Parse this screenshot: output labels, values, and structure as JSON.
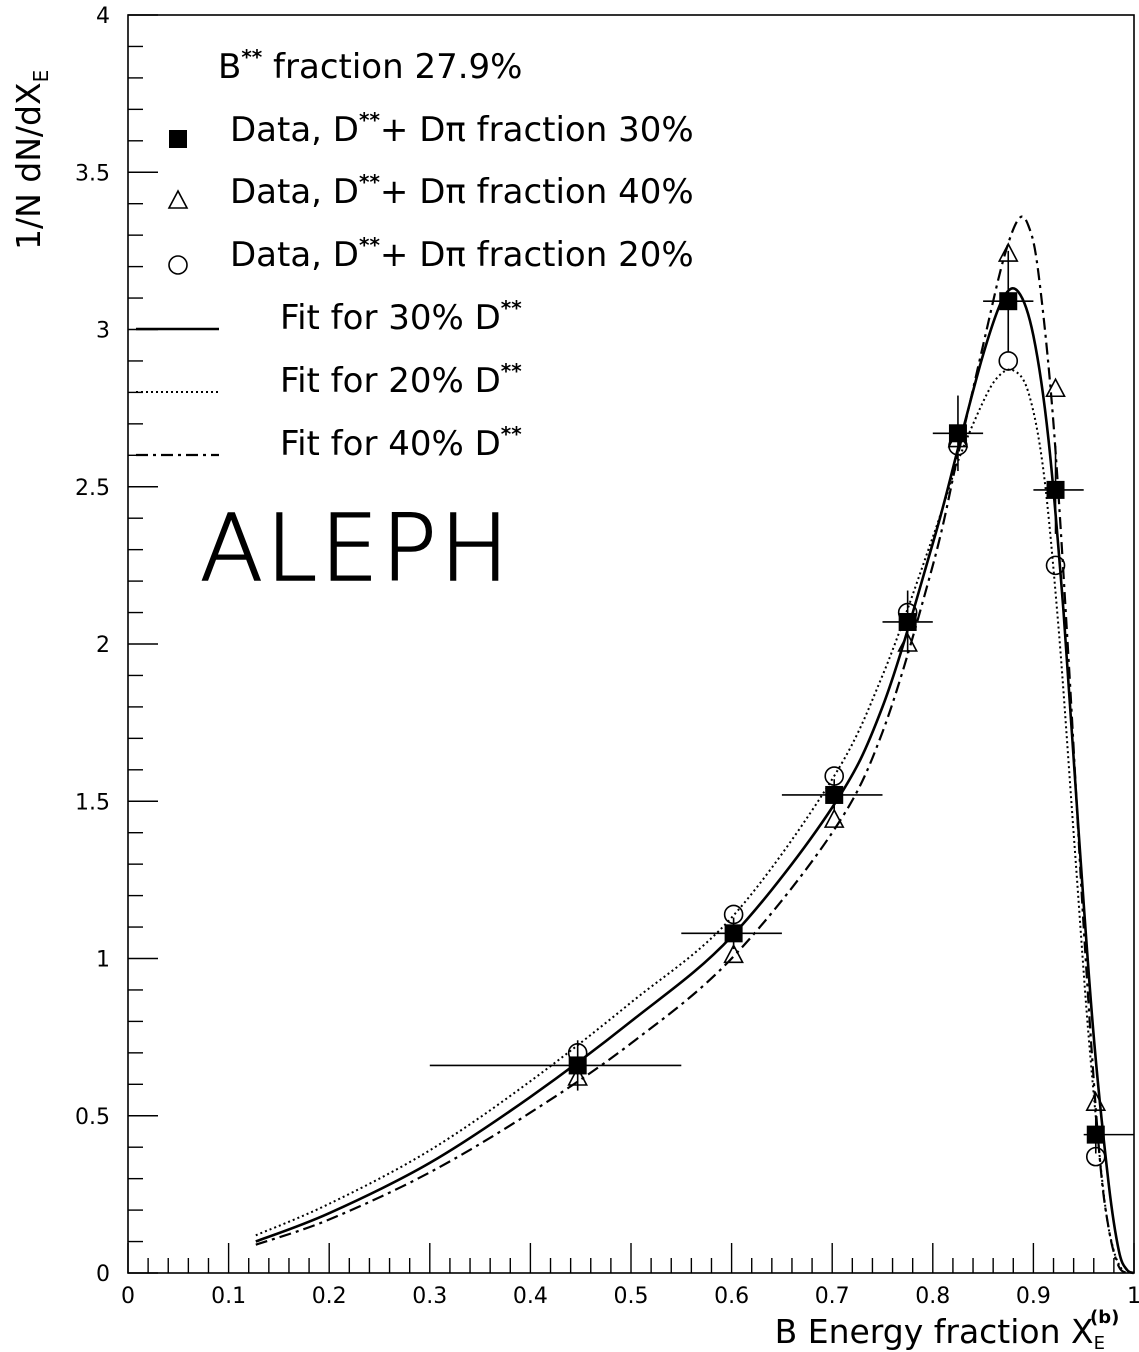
{
  "chart_data": {
    "type": "scatter",
    "title": "",
    "annotation": "ALEPH",
    "xlabel": "B Energy fraction X",
    "xlabel_sub": "E",
    "xlabel_sup": "(b)",
    "ylabel": "1/N dN/dX",
    "ylabel_sub": "E",
    "xlim": [
      0,
      1
    ],
    "ylim": [
      0,
      4
    ],
    "x_ticks": [
      0,
      0.1,
      0.2,
      0.3,
      0.4,
      0.5,
      0.6,
      0.7,
      0.8,
      0.9,
      1
    ],
    "x_tick_labels": [
      "0",
      "0.1",
      "0.2",
      "0.3",
      "0.4",
      "0.5",
      "0.6",
      "0.7",
      "0.8",
      "0.9",
      "1"
    ],
    "y_ticks": [
      0,
      0.5,
      1,
      1.5,
      2,
      2.5,
      3,
      3.5,
      4
    ],
    "y_tick_labels": [
      "0",
      "0.5",
      "1",
      "1.5",
      "2",
      "2.5",
      "3",
      "3.5",
      "4"
    ],
    "grid": false,
    "legend_position": "top-left",
    "header_text": {
      "prefix": "B",
      "sup": "**",
      "suffix": " fraction 27.9%"
    },
    "series": [
      {
        "name": "Data, D**+ Dπ fraction 30%",
        "label_prefix": "Data, D",
        "label_sup": "**",
        "label_suffix": "+ Dπ fraction 30%",
        "marker": "filled-square",
        "points": [
          {
            "x": 0.447,
            "y": 0.66,
            "xerr": [
              0.3,
              0.55
            ],
            "yerr": 0.08
          },
          {
            "x": 0.602,
            "y": 1.08,
            "xerr": [
              0.55,
              0.65
            ],
            "yerr": 0.05
          },
          {
            "x": 0.702,
            "y": 1.52,
            "xerr": [
              0.65,
              0.75
            ],
            "yerr": 0.05
          },
          {
            "x": 0.775,
            "y": 2.07,
            "xerr": [
              0.75,
              0.8
            ],
            "yerr": 0.1
          },
          {
            "x": 0.825,
            "y": 2.67,
            "xerr": [
              0.8,
              0.85
            ],
            "yerr": 0.12
          },
          {
            "x": 0.875,
            "y": 3.09,
            "xerr": [
              0.85,
              0.9
            ],
            "yerr": 0.16
          },
          {
            "x": 0.922,
            "y": 2.49,
            "xerr": [
              0.9,
              0.95
            ],
            "yerr": 0.14
          },
          {
            "x": 0.962,
            "y": 0.44,
            "xerr": [
              0.95,
              1.0
            ],
            "yerr": 0.06
          }
        ]
      },
      {
        "name": "Data, D**+ Dπ fraction 40%",
        "label_prefix": "Data, D",
        "label_sup": "**",
        "label_suffix": "+ Dπ fraction 40%",
        "marker": "open-triangle",
        "points": [
          {
            "x": 0.447,
            "y": 0.62
          },
          {
            "x": 0.602,
            "y": 1.01
          },
          {
            "x": 0.702,
            "y": 1.44
          },
          {
            "x": 0.775,
            "y": 2.0
          },
          {
            "x": 0.825,
            "y": 2.65
          },
          {
            "x": 0.875,
            "y": 3.24
          },
          {
            "x": 0.922,
            "y": 2.81
          },
          {
            "x": 0.962,
            "y": 0.54
          }
        ]
      },
      {
        "name": "Data, D**+ Dπ fraction 20%",
        "label_prefix": "Data, D",
        "label_sup": "**",
        "label_suffix": "+ Dπ fraction 20%",
        "marker": "open-circle",
        "points": [
          {
            "x": 0.447,
            "y": 0.7
          },
          {
            "x": 0.602,
            "y": 1.14
          },
          {
            "x": 0.702,
            "y": 1.58
          },
          {
            "x": 0.775,
            "y": 2.1
          },
          {
            "x": 0.825,
            "y": 2.63
          },
          {
            "x": 0.875,
            "y": 2.9
          },
          {
            "x": 0.922,
            "y": 2.25
          },
          {
            "x": 0.962,
            "y": 0.37
          }
        ]
      }
    ],
    "fits": [
      {
        "name": "Fit for 30% D**",
        "label_prefix": "Fit for 30% D",
        "label_sup": "**",
        "style": "solid",
        "x": [
          0.127,
          0.2,
          0.3,
          0.4,
          0.5,
          0.6,
          0.7,
          0.75,
          0.8,
          0.825,
          0.85,
          0.87,
          0.885,
          0.9,
          0.915,
          0.93,
          0.945,
          0.96,
          0.975,
          0.985,
          0.993,
          1.0
        ],
        "y": [
          0.1,
          0.19,
          0.35,
          0.56,
          0.8,
          1.07,
          1.48,
          1.8,
          2.32,
          2.62,
          2.92,
          3.1,
          3.12,
          2.98,
          2.65,
          2.1,
          1.4,
          0.75,
          0.28,
          0.07,
          0.01,
          0
        ]
      },
      {
        "name": "Fit for 20% D**",
        "label_prefix": "Fit for 20% D",
        "label_sup": "**",
        "style": "dotted",
        "x": [
          0.127,
          0.2,
          0.3,
          0.4,
          0.5,
          0.6,
          0.7,
          0.75,
          0.8,
          0.825,
          0.85,
          0.865,
          0.88,
          0.895,
          0.91,
          0.925,
          0.94,
          0.955,
          0.97,
          0.98,
          0.99
        ],
        "y": [
          0.12,
          0.22,
          0.39,
          0.61,
          0.86,
          1.13,
          1.57,
          1.9,
          2.34,
          2.58,
          2.77,
          2.85,
          2.87,
          2.8,
          2.55,
          2.05,
          1.4,
          0.75,
          0.25,
          0.07,
          0
        ]
      },
      {
        "name": "Fit for 40% D**",
        "label_prefix": "Fit for 40% D",
        "label_sup": "**",
        "style": "dash-dot",
        "x": [
          0.127,
          0.2,
          0.3,
          0.4,
          0.5,
          0.6,
          0.7,
          0.75,
          0.8,
          0.825,
          0.85,
          0.87,
          0.885,
          0.895,
          0.905,
          0.92,
          0.935,
          0.95,
          0.965,
          0.975,
          0.985,
          0.995
        ],
        "y": [
          0.09,
          0.17,
          0.32,
          0.51,
          0.73,
          1.0,
          1.4,
          1.72,
          2.25,
          2.6,
          2.95,
          3.22,
          3.35,
          3.33,
          3.18,
          2.7,
          1.95,
          1.1,
          0.4,
          0.14,
          0.02,
          0
        ]
      }
    ]
  }
}
